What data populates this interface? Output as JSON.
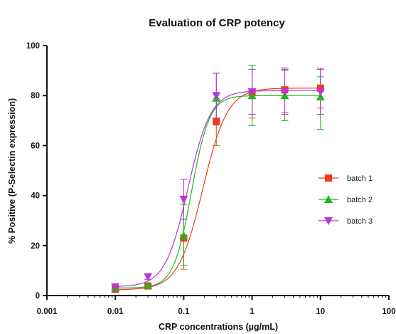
{
  "colors": {
    "batch1": "#f03a1c",
    "batch1_error": "#c0752a",
    "batch2": "#23b61f",
    "batch3": "#b03ad8",
    "axis": "#111111"
  },
  "chart_data": {
    "type": "scatter",
    "title": "Evaluation of CRP potency",
    "xlabel": "CRP concentrations (µg/mL)",
    "ylabel": "% Positive (P-Selectin expression)",
    "x_scale": "log",
    "xlim": [
      0.001,
      100
    ],
    "ylim": [
      0,
      100
    ],
    "x_ticks": [
      0.001,
      0.01,
      0.1,
      1,
      10,
      100
    ],
    "x_tick_labels": [
      "0.001",
      "0.01",
      "0.1",
      "1",
      "10",
      "100"
    ],
    "y_ticks": [
      0,
      20,
      40,
      60,
      80,
      100
    ],
    "y_tick_labels": [
      "0",
      "20",
      "40",
      "60",
      "80",
      "100"
    ],
    "legend_position": "right",
    "x": [
      0.01,
      0.03,
      0.1,
      0.3,
      1,
      3,
      10
    ],
    "series": [
      {
        "name": "batch 1",
        "marker": "square",
        "color_key": "batch1",
        "error_color_key": "batch1_error",
        "values": [
          2.5,
          3.8,
          23,
          69.5,
          81.5,
          82.3,
          83
        ],
        "err_low": [
          0.8,
          0.8,
          12.5,
          9.5,
          10.5,
          9,
          8
        ],
        "err_high": [
          0.8,
          0.8,
          13.5,
          9.5,
          10.5,
          8.8,
          8
        ],
        "fit": {
          "bottom": 2.3,
          "top": 83,
          "ec50": 0.19,
          "hill": 2.4
        }
      },
      {
        "name": "batch 2",
        "marker": "triangle-up",
        "color_key": "batch2",
        "error_color_key": "batch2",
        "values": [
          3,
          4,
          24,
          79,
          80,
          80,
          79.5
        ],
        "err_low": [
          0.6,
          0.6,
          12,
          10,
          12,
          10,
          13
        ],
        "err_high": [
          0.6,
          0.6,
          12.5,
          10,
          12,
          10,
          8
        ],
        "fit": {
          "bottom": 3,
          "top": 80,
          "ec50": 0.13,
          "hill": 3.3
        }
      },
      {
        "name": "batch 3",
        "marker": "triangle-down",
        "color_key": "batch3",
        "error_color_key": "batch3",
        "values": [
          3.5,
          7.5,
          38.5,
          80,
          81.5,
          81.5,
          81.5
        ],
        "err_low": [
          0.5,
          1,
          8,
          9,
          9,
          9,
          9
        ],
        "err_high": [
          0.5,
          1,
          8,
          9,
          9,
          9,
          9
        ],
        "fit": {
          "bottom": 3.5,
          "top": 82,
          "ec50": 0.115,
          "hill": 2.6
        }
      }
    ]
  }
}
